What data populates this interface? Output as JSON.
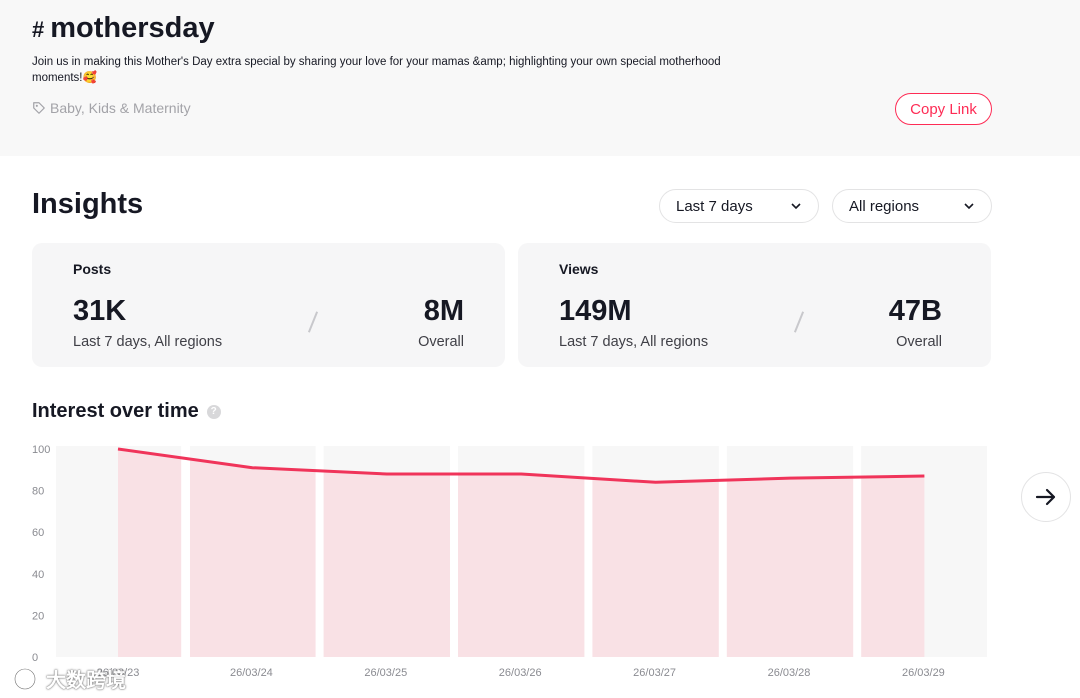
{
  "header": {
    "hash_symbol": "#",
    "hashtag": "mothersday",
    "description": "Join us in making this Mother's Day extra special by sharing your love for your mamas &amp; highlighting your own special motherhood moments!🥰",
    "category": "Baby, Kids & Maternity",
    "category_icon": "tag-icon",
    "copy_link_label": "Copy Link"
  },
  "insights": {
    "title": "Insights",
    "period_select": "Last 7 days",
    "region_select": "All regions",
    "cards": {
      "posts": {
        "label": "Posts",
        "recent_value": "31K",
        "recent_caption": "Last 7 days, All regions",
        "overall_value": "8M",
        "overall_caption": "Overall"
      },
      "views": {
        "label": "Views",
        "recent_value": "149M",
        "recent_caption": "Last 7 days, All regions",
        "overall_value": "47B",
        "overall_caption": "Overall"
      }
    }
  },
  "interest": {
    "title": "Interest over time",
    "help_icon": "question-icon",
    "next_icon": "arrow-right-icon"
  },
  "watermark": "大数跨境",
  "colors": {
    "accent": "#fe2c55",
    "line": "#f0345a",
    "area": "#f9e1e5",
    "band": "#f7f7f7"
  },
  "chart_data": {
    "type": "area",
    "x": [
      "26/03/23",
      "26/03/24",
      "26/03/25",
      "26/03/26",
      "26/03/27",
      "26/03/28",
      "26/03/29"
    ],
    "values": [
      100,
      91,
      88,
      88,
      84,
      86,
      87
    ],
    "yticks": [
      0,
      20,
      40,
      60,
      80,
      100
    ],
    "ylim": [
      0,
      100
    ],
    "grid": false
  }
}
